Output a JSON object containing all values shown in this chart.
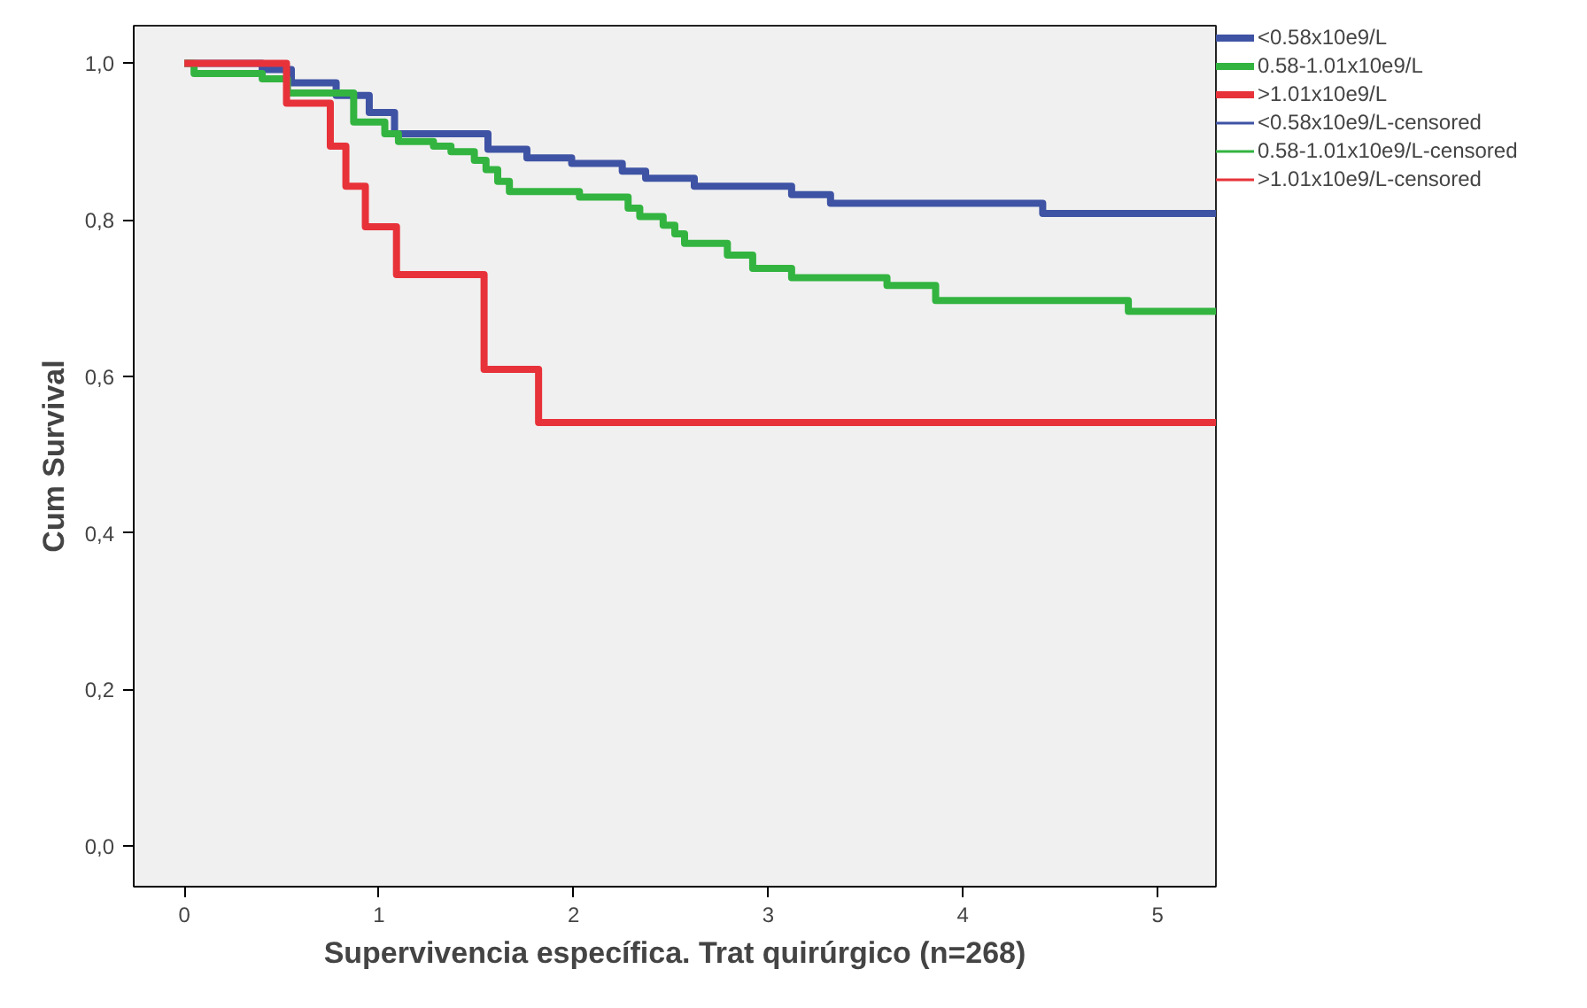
{
  "chart_data": {
    "type": "step",
    "xlabel": "Supervivencia específica. Trat quirúrgico (n=268)",
    "ylabel": "Cum Survival",
    "xlim": [
      -0.26,
      5.3
    ],
    "ylim": [
      -0.052,
      1.048
    ],
    "xticks": [
      0,
      1,
      2,
      3,
      4,
      5
    ],
    "yticks": [
      {
        "value": 0,
        "label": "0,0"
      },
      {
        "value": 0.2,
        "label": "0,2"
      },
      {
        "value": 0.4,
        "label": "0,4"
      },
      {
        "value": 0.6,
        "label": "0,6"
      },
      {
        "value": 0.8,
        "label": "0,8"
      },
      {
        "value": 1.0,
        "label": "1,0"
      }
    ],
    "grid": false,
    "legend": "right",
    "line_style": "solid",
    "series": [
      {
        "name": "<0.58x10e9/L",
        "color": "#3e53a4",
        "x": [
          0,
          0.4,
          0.55,
          0.78,
          0.95,
          1.08,
          1.56,
          1.76,
          1.99,
          2.25,
          2.37,
          2.62,
          3.12,
          3.32,
          4.41,
          5.3
        ],
        "values": [
          1.0,
          0.992,
          0.975,
          0.959,
          0.937,
          0.91,
          0.89,
          0.879,
          0.872,
          0.862,
          0.853,
          0.843,
          0.832,
          0.821,
          0.808,
          0.808
        ]
      },
      {
        "name": "0.58-1.01x10e9/L",
        "color": "#33b440",
        "x": [
          0,
          0.05,
          0.4,
          0.53,
          0.87,
          1.03,
          1.1,
          1.28,
          1.37,
          1.49,
          1.55,
          1.61,
          1.67,
          2.03,
          2.28,
          2.34,
          2.46,
          2.52,
          2.57,
          2.79,
          2.92,
          3.12,
          3.61,
          3.86,
          4.85,
          5.3
        ],
        "values": [
          1.0,
          0.987,
          0.98,
          0.962,
          0.925,
          0.91,
          0.9,
          0.894,
          0.887,
          0.876,
          0.864,
          0.849,
          0.836,
          0.829,
          0.815,
          0.804,
          0.793,
          0.782,
          0.77,
          0.755,
          0.738,
          0.726,
          0.716,
          0.697,
          0.683,
          0.683
        ]
      },
      {
        "name": ">1.01x10e9/L",
        "color": "#e8323a",
        "x": [
          0,
          0.525,
          0.75,
          0.83,
          0.93,
          1.09,
          1.54,
          1.82,
          5.3
        ],
        "values": [
          1.0,
          0.949,
          0.894,
          0.843,
          0.791,
          0.73,
          0.609,
          0.541,
          0.541
        ]
      },
      {
        "name": "<0.58x10e9/L-censored",
        "color": "#3e53a4",
        "type": "line"
      },
      {
        "name": "0.58-1.01x10e9/L-censored",
        "color": "#33b440",
        "type": "line"
      },
      {
        "name": ">1.01x10e9/L-censored",
        "color": "#e8323a",
        "type": "line"
      }
    ]
  }
}
